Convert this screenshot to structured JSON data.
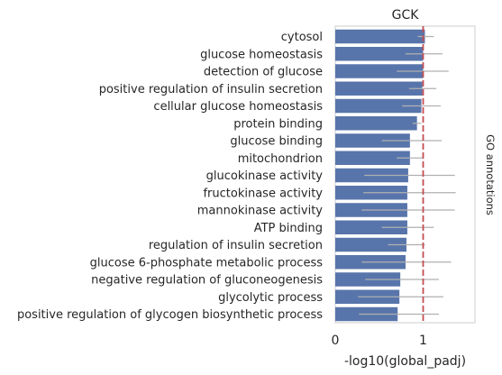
{
  "chart_data": {
    "type": "bar",
    "orientation": "horizontal",
    "title": "GCK",
    "xlabel": "-log10(global_padj)",
    "side_label": "GO annotations",
    "xlim": [
      0,
      1.6
    ],
    "xticks": [
      0,
      1
    ],
    "reference_line": {
      "x": 1.0,
      "color": "#c44e52",
      "style": "dashed"
    },
    "bar_color": "#5875ab",
    "error_color": "#b0b0b0",
    "grid": false,
    "categories": [
      "cytosol",
      "glucose homeostasis",
      "detection of glucose",
      "positive regulation of insulin secretion",
      "cellular glucose homeostasis",
      "protein binding",
      "glucose binding",
      "mitochondrion",
      "glucokinase activity",
      "fructokinase activity",
      "mannokinase activity",
      "ATP binding",
      "regulation of insulin secretion",
      "glucose 6-phosphate metabolic process",
      "negative regulation of gluconeogenesis",
      "glycolytic process",
      "positive regulation of glycogen biosynthetic process"
    ],
    "values": [
      1.02,
      1.0,
      1.0,
      0.99,
      0.98,
      0.93,
      0.85,
      0.85,
      0.83,
      0.82,
      0.82,
      0.82,
      0.81,
      0.8,
      0.74,
      0.73,
      0.71
    ],
    "error_low": [
      0.94,
      0.8,
      0.7,
      0.84,
      0.76,
      0.88,
      0.53,
      0.7,
      0.33,
      0.32,
      0.3,
      0.53,
      0.6,
      0.3,
      0.34,
      0.26,
      0.27
    ],
    "error_high": [
      1.12,
      1.22,
      1.29,
      1.15,
      1.2,
      0.98,
      1.21,
      1.0,
      1.36,
      1.37,
      1.36,
      1.12,
      1.02,
      1.32,
      1.18,
      1.23,
      1.18
    ]
  }
}
